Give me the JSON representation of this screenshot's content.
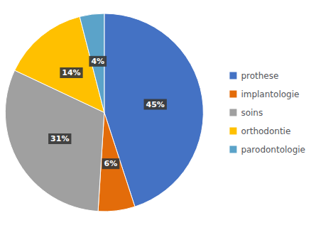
{
  "chart_data": {
    "type": "pie",
    "categories": [
      "prothese",
      "implantologie",
      "soins",
      "orthodontie",
      "parodontologie"
    ],
    "values": [
      45,
      6,
      31,
      14,
      4
    ],
    "value_labels": [
      "45%",
      "6%",
      "31%",
      "14%",
      "4%"
    ],
    "colors": [
      "#4472C4",
      "#E36C0A",
      "#A0A0A0",
      "#FFC000",
      "#5BA3C9"
    ],
    "data_labels": true,
    "legend": "right"
  }
}
